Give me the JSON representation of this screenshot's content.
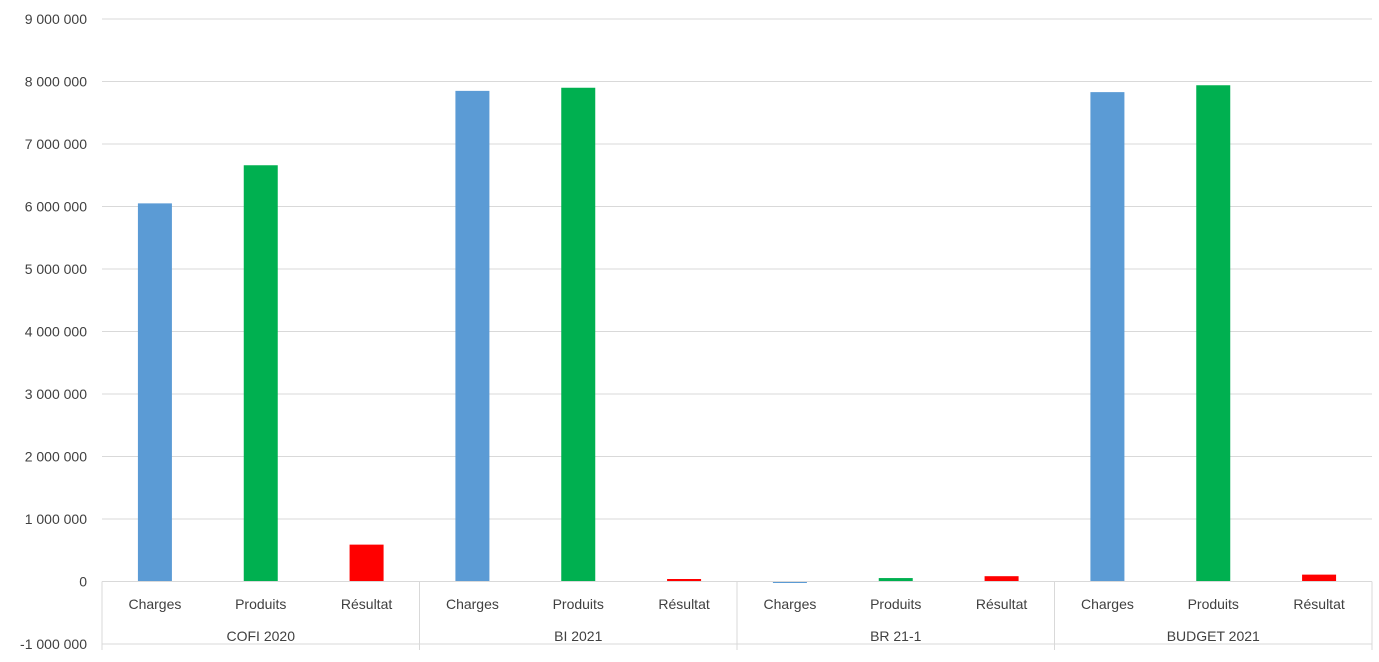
{
  "chart_data": {
    "type": "bar",
    "groups": [
      {
        "label": "COFI 2020",
        "categories": [
          "Charges",
          "Produits",
          "Résultat"
        ],
        "values": [
          6050000,
          6660000,
          590000
        ]
      },
      {
        "label": "BI 2021",
        "categories": [
          "Charges",
          "Produits",
          "Résultat"
        ],
        "values": [
          7850000,
          7900000,
          40000
        ]
      },
      {
        "label": "BR 21-1",
        "categories": [
          "Charges",
          "Produits",
          "Résultat"
        ],
        "values": [
          -20000,
          55000,
          85000
        ]
      },
      {
        "label": "BUDGET 2021",
        "categories": [
          "Charges",
          "Produits",
          "Résultat"
        ],
        "values": [
          7830000,
          7940000,
          110000
        ]
      }
    ],
    "category_colors": {
      "Charges": "#5B9BD5",
      "Produits": "#00B050",
      "Résultat": "#FF0000"
    },
    "y_ticks": [
      "-1 000 000",
      "0",
      "1 000 000",
      "2 000 000",
      "3 000 000",
      "4 000 000",
      "5 000 000",
      "6 000 000",
      "7 000 000",
      "8 000 000",
      "9 000 000"
    ],
    "y_tick_values": [
      -1000000,
      0,
      1000000,
      2000000,
      3000000,
      4000000,
      5000000,
      6000000,
      7000000,
      8000000,
      9000000
    ],
    "ylim": [
      -1000000,
      9000000
    ],
    "title": "",
    "xlabel": "",
    "ylabel": "",
    "grid": true,
    "legend": "none"
  }
}
